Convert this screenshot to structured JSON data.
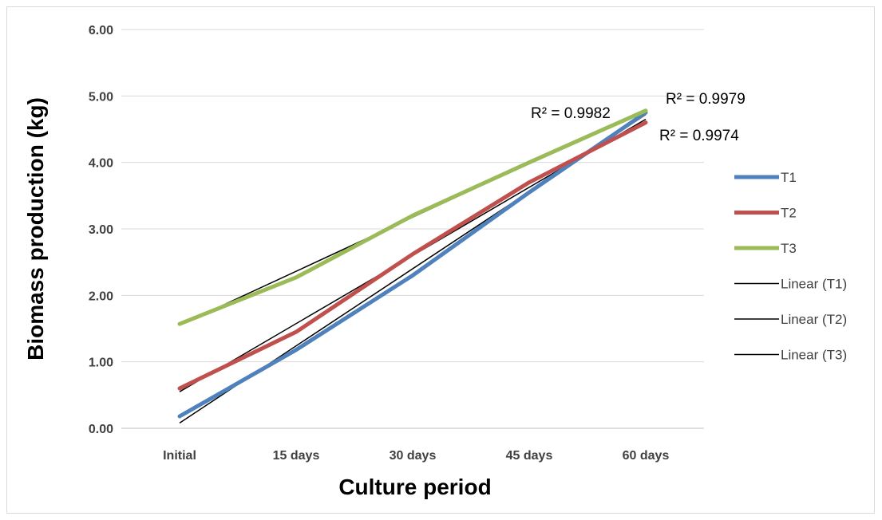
{
  "chart_data": {
    "type": "line",
    "categories": [
      "Initial",
      "15 days",
      "30 days",
      "45 days",
      "60 days"
    ],
    "series": [
      {
        "name": "T1",
        "color": "#4f81bd",
        "values": [
          0.18,
          1.18,
          2.3,
          3.55,
          4.75
        ]
      },
      {
        "name": "T2",
        "color": "#c0504d",
        "values": [
          0.6,
          1.45,
          2.62,
          3.7,
          4.6
        ]
      },
      {
        "name": "T3",
        "color": "#9bbb59",
        "values": [
          1.57,
          2.27,
          3.2,
          4.0,
          4.78
        ]
      }
    ],
    "trendlines": [
      {
        "name": "Linear (T1)",
        "color": "#000000",
        "start": 0.08,
        "end": 4.72
      },
      {
        "name": "Linear (T2)",
        "color": "#000000",
        "start": 0.55,
        "end": 4.65
      },
      {
        "name": "Linear (T3)",
        "color": "#000000",
        "start": 1.55,
        "end": 4.8
      }
    ],
    "r_squared": [
      {
        "label": "R² = 0.9982",
        "series": "T1"
      },
      {
        "label": "R² = 0.9979",
        "series": "T3"
      },
      {
        "label": "R² = 0.9974",
        "series": "T2"
      }
    ],
    "xlabel": "Culture period",
    "ylabel": "Biomass production (kg)",
    "ylim": [
      0,
      6
    ],
    "yticks": [
      "0.00",
      "1.00",
      "2.00",
      "3.00",
      "4.00",
      "5.00",
      "6.00"
    ],
    "grid": true,
    "legend_position": "right"
  }
}
